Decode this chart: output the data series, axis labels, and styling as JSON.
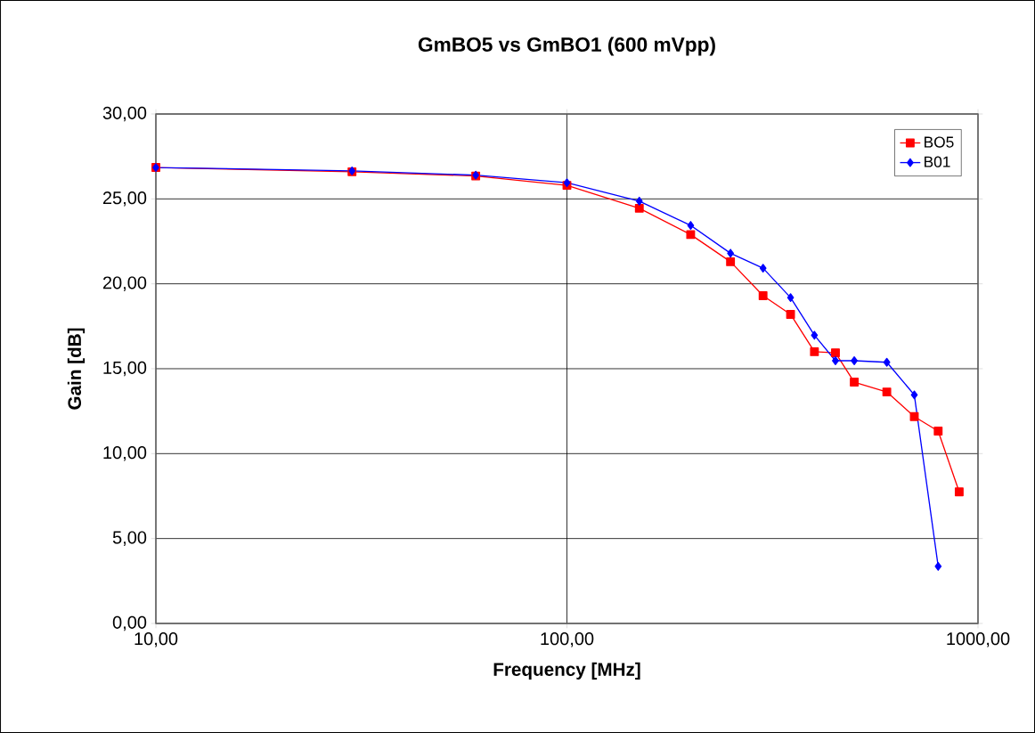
{
  "chart_data": {
    "type": "line",
    "title": "GmBO5 vs GmBO1 (600 mVpp)",
    "xlabel": "Frequency [MHz]",
    "ylabel": "Gain [dB]",
    "x": [
      10,
      30,
      60,
      100,
      150,
      200,
      250,
      300,
      350,
      400,
      450,
      500,
      600,
      700,
      800,
      900
    ],
    "series": [
      {
        "name": "BO5",
        "color": "#ff0000",
        "marker": "square",
        "values": [
          26.85,
          26.6,
          26.35,
          25.8,
          24.45,
          22.9,
          21.3,
          19.3,
          18.2,
          16.0,
          15.94,
          14.21,
          13.63,
          12.18,
          11.33,
          7.75
        ]
      },
      {
        "name": "B01",
        "color": "#0000ff",
        "marker": "diamond",
        "values": [
          26.85,
          26.65,
          26.4,
          25.95,
          24.87,
          23.44,
          21.8,
          20.92,
          19.19,
          16.97,
          15.47,
          15.47,
          15.38,
          13.46,
          3.36,
          null
        ]
      }
    ],
    "log": "x",
    "xlim": [
      10,
      1000
    ],
    "ylim": [
      0,
      30
    ],
    "xticks": [
      {
        "value": 10,
        "label": "10,00"
      },
      {
        "value": 100,
        "label": "100,00"
      },
      {
        "value": 1000,
        "label": "1000,00"
      }
    ],
    "yticks": [
      {
        "value": 0,
        "label": "0,00"
      },
      {
        "value": 5,
        "label": "5,00"
      },
      {
        "value": 10,
        "label": "10,00"
      },
      {
        "value": 15,
        "label": "15,00"
      },
      {
        "value": 20,
        "label": "20,00"
      },
      {
        "value": 25,
        "label": "25,00"
      },
      {
        "value": 30,
        "label": "30,00"
      }
    ],
    "grid": true,
    "legend": "top right",
    "line_style": "solid"
  }
}
